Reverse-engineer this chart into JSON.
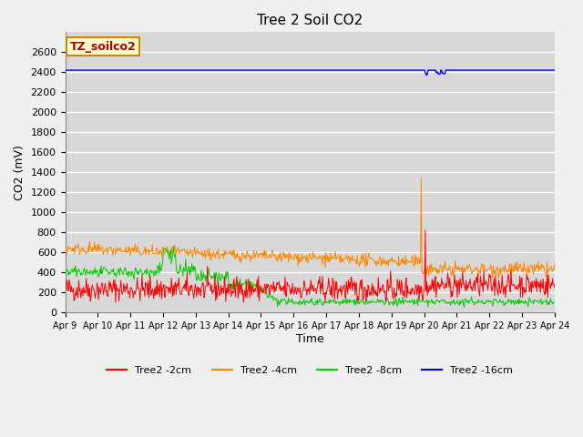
{
  "title": "Tree 2 Soil CO2",
  "ylabel": "CO2 (mV)",
  "xlabel": "Time",
  "legend_label": "TZ_soilco2",
  "legend_box_color": "#ffffcc",
  "legend_box_edge": "#cc8800",
  "legend_text_color": "#aa0000",
  "series_labels": [
    "Tree2 -2cm",
    "Tree2 -4cm",
    "Tree2 -8cm",
    "Tree2 -16cm"
  ],
  "series_colors": [
    "#ff0000",
    "#ff8800",
    "#00cc00",
    "#0000ff"
  ],
  "ylim": [
    0,
    2800
  ],
  "yticks": [
    0,
    200,
    400,
    600,
    800,
    1000,
    1200,
    1400,
    1600,
    1800,
    2000,
    2200,
    2400,
    2600
  ],
  "plot_bg": "#d8d8d8",
  "fig_bg": "#f0f0f0",
  "grid_color": "#ffffff",
  "n_days": 15,
  "start_day": 9,
  "points_per_day": 48,
  "seed": 42
}
